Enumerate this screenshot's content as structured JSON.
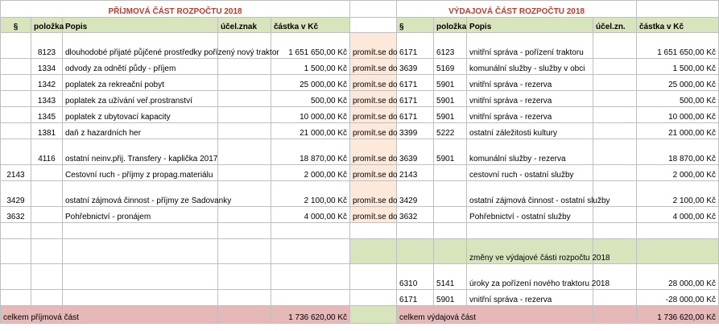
{
  "titles": {
    "income": "PŘÍJMOVÁ ČÁST ROZPOČTU 2018",
    "expense": "VÝDAJOVÁ ČÁST ROZPOČTU 2018"
  },
  "headers": {
    "income": {
      "paragraf": "§",
      "polozka": "položka",
      "popis": "Popis",
      "ucel": "účel.znak",
      "castka": "částka v Kč"
    },
    "expense": {
      "paragraf": "§",
      "polozka": "položka",
      "popis": "Popis",
      "ucel": "účel.zn.",
      "castka": "částka v Kč"
    }
  },
  "promit_label": "promít.se do",
  "rows": [
    {
      "ip": "",
      "ipol": "8123",
      "idesc": "dlouhodobé přijaté půjčené prostředky pořízený nový traktor",
      "iamt": "1 651 650,00 Kč",
      "ep": "6171",
      "epol": "6123",
      "edesc": "vnitřní správa - pořízení traktoru",
      "eamt": "1 651 650,00 Kč"
    },
    {
      "ip": "",
      "ipol": "1334",
      "idesc": "odvody za odnětí půdy - příjem",
      "iamt": "1 500,00 Kč",
      "ep": "3639",
      "epol": "5169",
      "edesc": "komunální služby - služby v obci",
      "eamt": "1 500,00 Kč"
    },
    {
      "ip": "",
      "ipol": "1342",
      "idesc": "poplatek za rekreační pobyt",
      "iamt": "25 000,00 Kč",
      "ep": "6171",
      "epol": "5901",
      "edesc": "vnitřní správa - rezerva",
      "eamt": "25 000,00 Kč"
    },
    {
      "ip": "",
      "ipol": "1343",
      "idesc": "poplatek za užívání veř.prostranství",
      "iamt": "500,00 Kč",
      "ep": "6171",
      "epol": "5901",
      "edesc": "vnitřní správa - rezerva",
      "eamt": "500,00 Kč"
    },
    {
      "ip": "",
      "ipol": "1345",
      "idesc": "poplatek z ubytovací kapacity",
      "iamt": "10 000,00 Kč",
      "ep": "6171",
      "epol": "5901",
      "edesc": "vnitřní správa - rezerva",
      "eamt": "10 000,00 Kč"
    },
    {
      "ip": "",
      "ipol": "1381",
      "idesc": "daň z hazardních her",
      "iamt": "21 000,00 Kč",
      "ep": "3399",
      "epol": "5222",
      "edesc": "ostatní záležitosti kultury",
      "eamt": "21 000,00 Kč"
    },
    {
      "ip": "",
      "ipol": "4116",
      "idesc": "ostatní neinv.přij. Transfery - kaplička 2017",
      "iamt": "18 870,00 Kč",
      "ep": "3639",
      "epol": "5901",
      "edesc": "komunální služby - rezerva",
      "eamt": "18 870,00 Kč"
    },
    {
      "ip": "2143",
      "ipol": "",
      "idesc": "Cestovní ruch - příjmy z propag.materiálu",
      "iamt": "2 000,00 Kč",
      "ep": "2143",
      "epol": "",
      "edesc": "cestovní ruch - ostatní služby",
      "eamt": "2 000,00 Kč"
    },
    {
      "ip": "3429",
      "ipol": "",
      "idesc": "ostatní zájmová činnost - příjmy ze Sadovanky",
      "iamt": "2 100,00 Kč",
      "ep": "3429",
      "epol": "",
      "edesc": "ostatní zájmová činnost - ostatní služby",
      "eamt": "2 100,00 Kč"
    },
    {
      "ip": "3632",
      "ipol": "",
      "idesc": "Pohřebnictví - pronájem",
      "iamt": "4 000,00 Kč",
      "ep": "3632",
      "epol": "",
      "edesc": "Pohřebnictví - ostatní služby",
      "eamt": "4 000,00 Kč"
    }
  ],
  "changes": {
    "label": "změny ve výdajové části rozpočtu 2018",
    "rows": [
      {
        "ep": "6310",
        "epol": "5141",
        "edesc": "úroky za pořízení nového traktoru 2018",
        "eamt": "28 000,00 Kč"
      },
      {
        "ep": "6171",
        "epol": "5901",
        "edesc": "vnitřní správa - rezerva",
        "eamt": "-28 000,00 Kč"
      }
    ]
  },
  "totals": {
    "income_label": "celkem příjmová  část",
    "income_amount": "1 736 620,00 Kč",
    "expense_label": "celkem výdajová část",
    "expense_amount": "1 736 620,00 Kč"
  }
}
